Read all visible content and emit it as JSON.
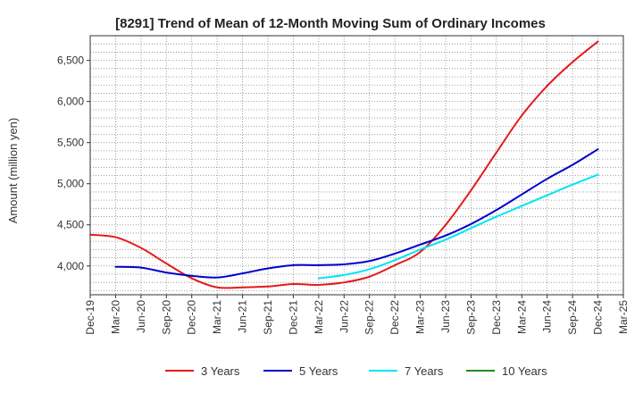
{
  "chart_data": {
    "type": "line",
    "title": "[8291]  Trend of Mean of 12-Month Moving Sum of Ordinary Incomes",
    "xlabel": "",
    "ylabel": "Amount (million yen)",
    "ylim": [
      3650,
      6800
    ],
    "yticks": [
      4000,
      4500,
      5000,
      5500,
      6000,
      6500
    ],
    "ytick_labels": [
      "4,000",
      "4,500",
      "5,000",
      "5,500",
      "6,000",
      "6,500"
    ],
    "categories": [
      "Dec-19",
      "Mar-20",
      "Jun-20",
      "Sep-20",
      "Dec-20",
      "Mar-21",
      "Jun-21",
      "Sep-21",
      "Dec-21",
      "Mar-22",
      "Jun-22",
      "Sep-22",
      "Dec-22",
      "Mar-23",
      "Jun-23",
      "Sep-23",
      "Dec-23",
      "Mar-24",
      "Jun-24",
      "Sep-24",
      "Dec-24",
      "Mar-25"
    ],
    "grid": true,
    "legend_position": "bottom",
    "series": [
      {
        "name": "3 Years",
        "color": "#e41a1c",
        "values": [
          4380,
          4350,
          4220,
          4030,
          3850,
          3740,
          3740,
          3750,
          3780,
          3770,
          3800,
          3870,
          4010,
          4170,
          4500,
          4920,
          5380,
          5830,
          6190,
          6480,
          6730,
          null
        ]
      },
      {
        "name": "5 Years",
        "color": "#0000cc",
        "values": [
          null,
          3990,
          3980,
          3920,
          3880,
          3860,
          3910,
          3970,
          4010,
          4010,
          4020,
          4060,
          4150,
          4260,
          4370,
          4510,
          4680,
          4870,
          5060,
          5230,
          5420,
          null
        ]
      },
      {
        "name": "7 Years",
        "color": "#00e5ee",
        "values": [
          null,
          null,
          null,
          null,
          null,
          null,
          null,
          null,
          null,
          3850,
          3890,
          3960,
          4070,
          4200,
          4320,
          4460,
          4600,
          4730,
          4860,
          4990,
          5110,
          null
        ]
      },
      {
        "name": "10 Years",
        "color": "#228b22",
        "values": [
          null,
          null,
          null,
          null,
          null,
          null,
          null,
          null,
          null,
          null,
          null,
          null,
          null,
          null,
          null,
          null,
          null,
          null,
          null,
          null,
          null,
          null
        ]
      }
    ]
  }
}
